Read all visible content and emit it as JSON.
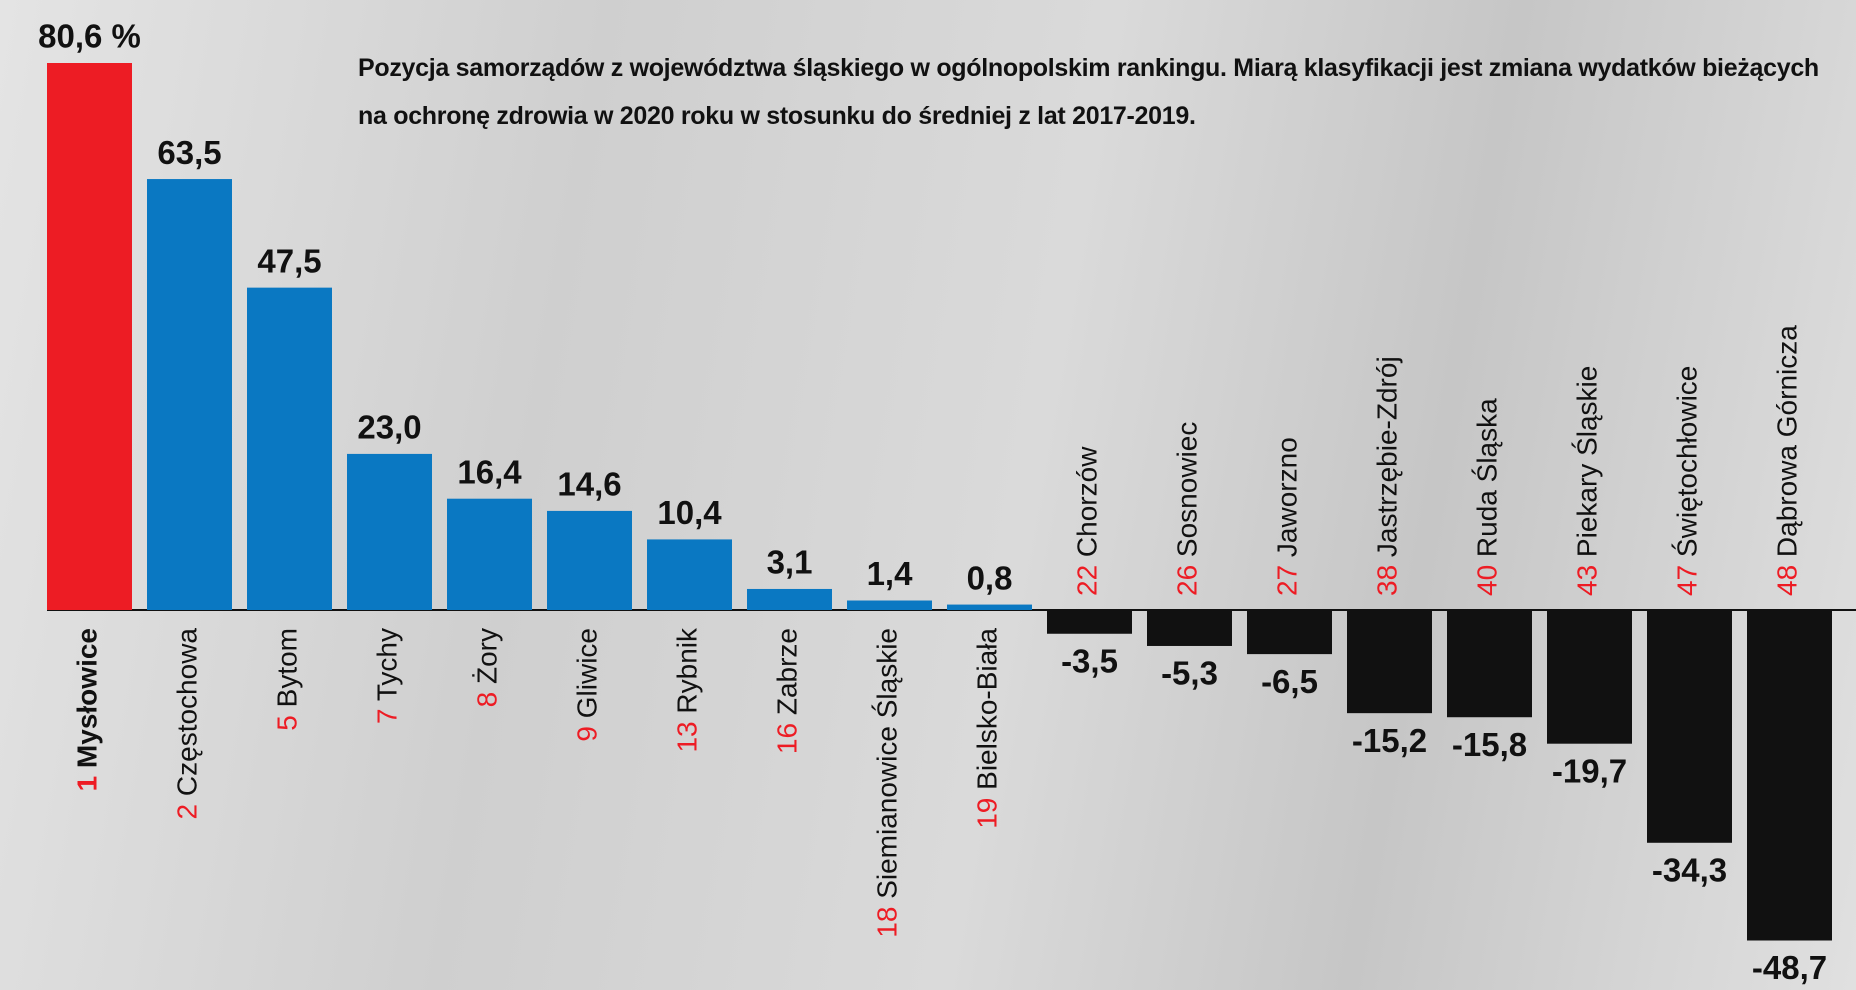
{
  "chart_data": {
    "type": "bar",
    "title": "Pozycja samorządów z województwa śląskiego w ogólnopolskim rankingu. Miarą klasyfikacji jest zmiana wydatków bieżących na ochronę zdrowia w 2020 roku w stosunku do średniej z lat 2017-2019.",
    "ranks": [
      1,
      2,
      5,
      7,
      8,
      9,
      13,
      16,
      18,
      19,
      22,
      26,
      27,
      38,
      40,
      43,
      47,
      48
    ],
    "categories": [
      "Mysłowice",
      "Częstochowa",
      "Bytom",
      "Tychy",
      "Żory",
      "Gliwice",
      "Rybnik",
      "Zabrze",
      "Siemianowice Śląskie",
      "Bielsko-Biała",
      "Chorzów",
      "Sosnowiec",
      "Jaworzno",
      "Jastrzębie-Zdrój",
      "Ruda Śląska",
      "Piekary Śląskie",
      "Świętochłowice",
      "Dąbrowa Górnicza"
    ],
    "values": [
      80.6,
      63.5,
      47.5,
      23.0,
      16.4,
      14.6,
      10.4,
      3.1,
      1.4,
      0.8,
      -3.5,
      -5.3,
      -6.5,
      -15.2,
      -15.8,
      -19.7,
      -34.3,
      -48.7
    ],
    "value_labels": [
      "80,6 %",
      "63,5",
      "47,5",
      "23,0",
      "16,4",
      "14,6",
      "10,4",
      "3,1",
      "1,4",
      "0,8",
      "-3,5",
      "-5,3",
      "-6,5",
      "-15,2",
      "-15,8",
      "-19,7",
      "-34,3",
      "-48,7"
    ],
    "colors": [
      "#ed1c24",
      "#0a78c2",
      "#0a78c2",
      "#0a78c2",
      "#0a78c2",
      "#0a78c2",
      "#0a78c2",
      "#0a78c2",
      "#0a78c2",
      "#0a78c2",
      "#111111",
      "#111111",
      "#111111",
      "#111111",
      "#111111",
      "#111111",
      "#111111",
      "#111111"
    ],
    "rank_color": "#ed1c24",
    "highlight": 0
  }
}
